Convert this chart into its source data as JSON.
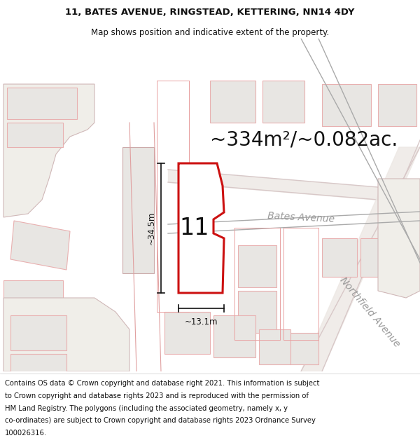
{
  "title_line1": "11, BATES AVENUE, RINGSTEAD, KETTERING, NN14 4DY",
  "title_line2": "Map shows position and indicative extent of the property.",
  "area_text": "~334m²/~0.082ac.",
  "label_number": "11",
  "dim_height": "~34.5m",
  "dim_width": "~13.1m",
  "road_label1": "Bates Avenue",
  "road_label2": "Northfield Avenue",
  "footer_lines": [
    "Contains OS data © Crown copyright and database right 2021. This information is subject",
    "to Crown copyright and database rights 2023 and is reproduced with the permission of",
    "HM Land Registry. The polygons (including the associated geometry, namely x, y",
    "co-ordinates) are subject to Crown copyright and database rights 2023 Ordnance Survey",
    "100026316."
  ],
  "bg_color": "#f7f5f2",
  "property_fill": "#ffffff",
  "property_edge": "#cc1111",
  "building_fill": "#e8e6e3",
  "building_edge": "#e8b0b0",
  "road_line_color": "#d8c8c8",
  "road_label_color": "#999999",
  "dim_color": "#111111",
  "text_color": "#111111",
  "title_fontsize": 9.5,
  "subtitle_fontsize": 8.5,
  "area_fontsize": 20,
  "label_fontsize": 24,
  "dim_fontsize": 8.5,
  "road_fontsize": 10,
  "footer_fontsize": 7.2
}
